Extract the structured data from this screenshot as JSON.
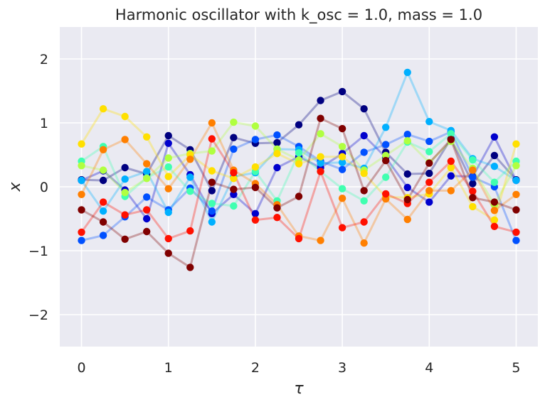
{
  "chart_data": {
    "type": "line",
    "title": "Harmonic oscillator with k_osc = 1.0, mass = 1.0",
    "xlabel": "τ",
    "ylabel": "x",
    "xlim": [
      -0.25,
      5.25
    ],
    "ylim": [
      -2.5,
      2.5
    ],
    "xticks": [
      0,
      1,
      2,
      3,
      4,
      5
    ],
    "yticks": [
      -2,
      -1,
      0,
      1,
      2
    ],
    "xtick_labels": [
      "0",
      "1",
      "2",
      "3",
      "4",
      "5"
    ],
    "ytick_labels": [
      "−2",
      "−1",
      "0",
      "1",
      "2"
    ],
    "grid": true,
    "background": "#eaeaf2",
    "x": [
      0,
      0.25,
      0.5,
      0.75,
      1.0,
      1.25,
      1.5,
      1.75,
      2.0,
      2.25,
      2.5,
      2.75,
      3.0,
      3.25,
      3.5,
      3.75,
      4.0,
      4.25,
      4.5,
      4.75,
      5.0
    ],
    "series": [
      {
        "color": "#000080",
        "values": [
          0.11,
          0.1,
          0.3,
          0.2,
          0.8,
          0.58,
          -0.06,
          0.77,
          0.68,
          0.69,
          0.97,
          1.35,
          1.49,
          1.22,
          0.54,
          0.2,
          0.21,
          0.75,
          0.05,
          0.49,
          0.11
        ]
      },
      {
        "color": "#0000cd",
        "values": [
          0.1,
          0.25,
          -0.05,
          -0.5,
          0.68,
          0.19,
          -0.42,
          -0.12,
          -0.42,
          0.3,
          0.47,
          0.3,
          0.52,
          0.8,
          0.46,
          -0.01,
          -0.24,
          0.17,
          0.16,
          0.78,
          0.1
        ]
      },
      {
        "color": "#0050ff",
        "values": [
          -0.84,
          -0.76,
          -0.47,
          -0.16,
          -0.36,
          -0.02,
          -0.38,
          0.59,
          0.74,
          0.81,
          0.63,
          0.4,
          0.27,
          0.54,
          0.66,
          0.82,
          0.71,
          0.86,
          0.15,
          0.0,
          -0.84
        ]
      },
      {
        "color": "#00b0ff",
        "values": [
          0.1,
          -0.38,
          0.12,
          0.24,
          -0.4,
          0.15,
          -0.55,
          0.16,
          0.22,
          0.59,
          0.58,
          0.37,
          0.38,
          0.29,
          0.93,
          1.79,
          1.02,
          0.88,
          0.44,
          0.32,
          0.1
        ]
      },
      {
        "color": "#40ffb0",
        "values": [
          0.4,
          0.63,
          -0.15,
          0.14,
          0.31,
          -0.07,
          -0.26,
          -0.3,
          0.24,
          -0.22,
          0.53,
          0.24,
          -0.03,
          -0.22,
          0.15,
          0.7,
          0.55,
          0.83,
          0.42,
          0.07,
          0.4
        ]
      },
      {
        "color": "#b0ff40",
        "values": [
          0.33,
          0.26,
          -0.09,
          0.13,
          0.45,
          0.52,
          0.56,
          1.01,
          0.95,
          0.59,
          0.42,
          0.83,
          0.63,
          0.26,
          0.49,
          0.72,
          0.38,
          0.71,
          0.29,
          -0.28,
          0.33
        ]
      },
      {
        "color": "#ffe000",
        "values": [
          0.67,
          1.22,
          1.1,
          0.78,
          0.16,
          0.5,
          0.25,
          0.13,
          0.31,
          0.52,
          0.36,
          0.47,
          0.47,
          0.21,
          -0.16,
          -0.17,
          -0.11,
          0.3,
          -0.31,
          -0.52,
          0.67
        ]
      },
      {
        "color": "#ff7f00",
        "values": [
          -0.12,
          0.58,
          0.74,
          0.36,
          -0.03,
          0.43,
          1.0,
          0.26,
          0.05,
          -0.28,
          -0.77,
          -0.84,
          -0.18,
          -0.88,
          -0.19,
          -0.51,
          -0.06,
          -0.06,
          0.26,
          -0.37,
          -0.12
        ]
      },
      {
        "color": "#ff1000",
        "values": [
          -0.71,
          -0.24,
          -0.44,
          -0.36,
          -0.81,
          -0.69,
          0.75,
          0.22,
          -0.52,
          -0.48,
          -0.81,
          0.24,
          -0.64,
          -0.55,
          -0.11,
          -0.26,
          0.07,
          0.4,
          -0.07,
          -0.62,
          -0.71
        ]
      },
      {
        "color": "#800000",
        "values": [
          -0.36,
          -0.55,
          -0.82,
          -0.7,
          -1.04,
          -1.26,
          0.07,
          -0.04,
          -0.01,
          -0.33,
          -0.15,
          1.07,
          0.91,
          -0.06,
          0.41,
          -0.2,
          0.37,
          0.74,
          -0.17,
          -0.24,
          -0.36
        ]
      }
    ]
  }
}
